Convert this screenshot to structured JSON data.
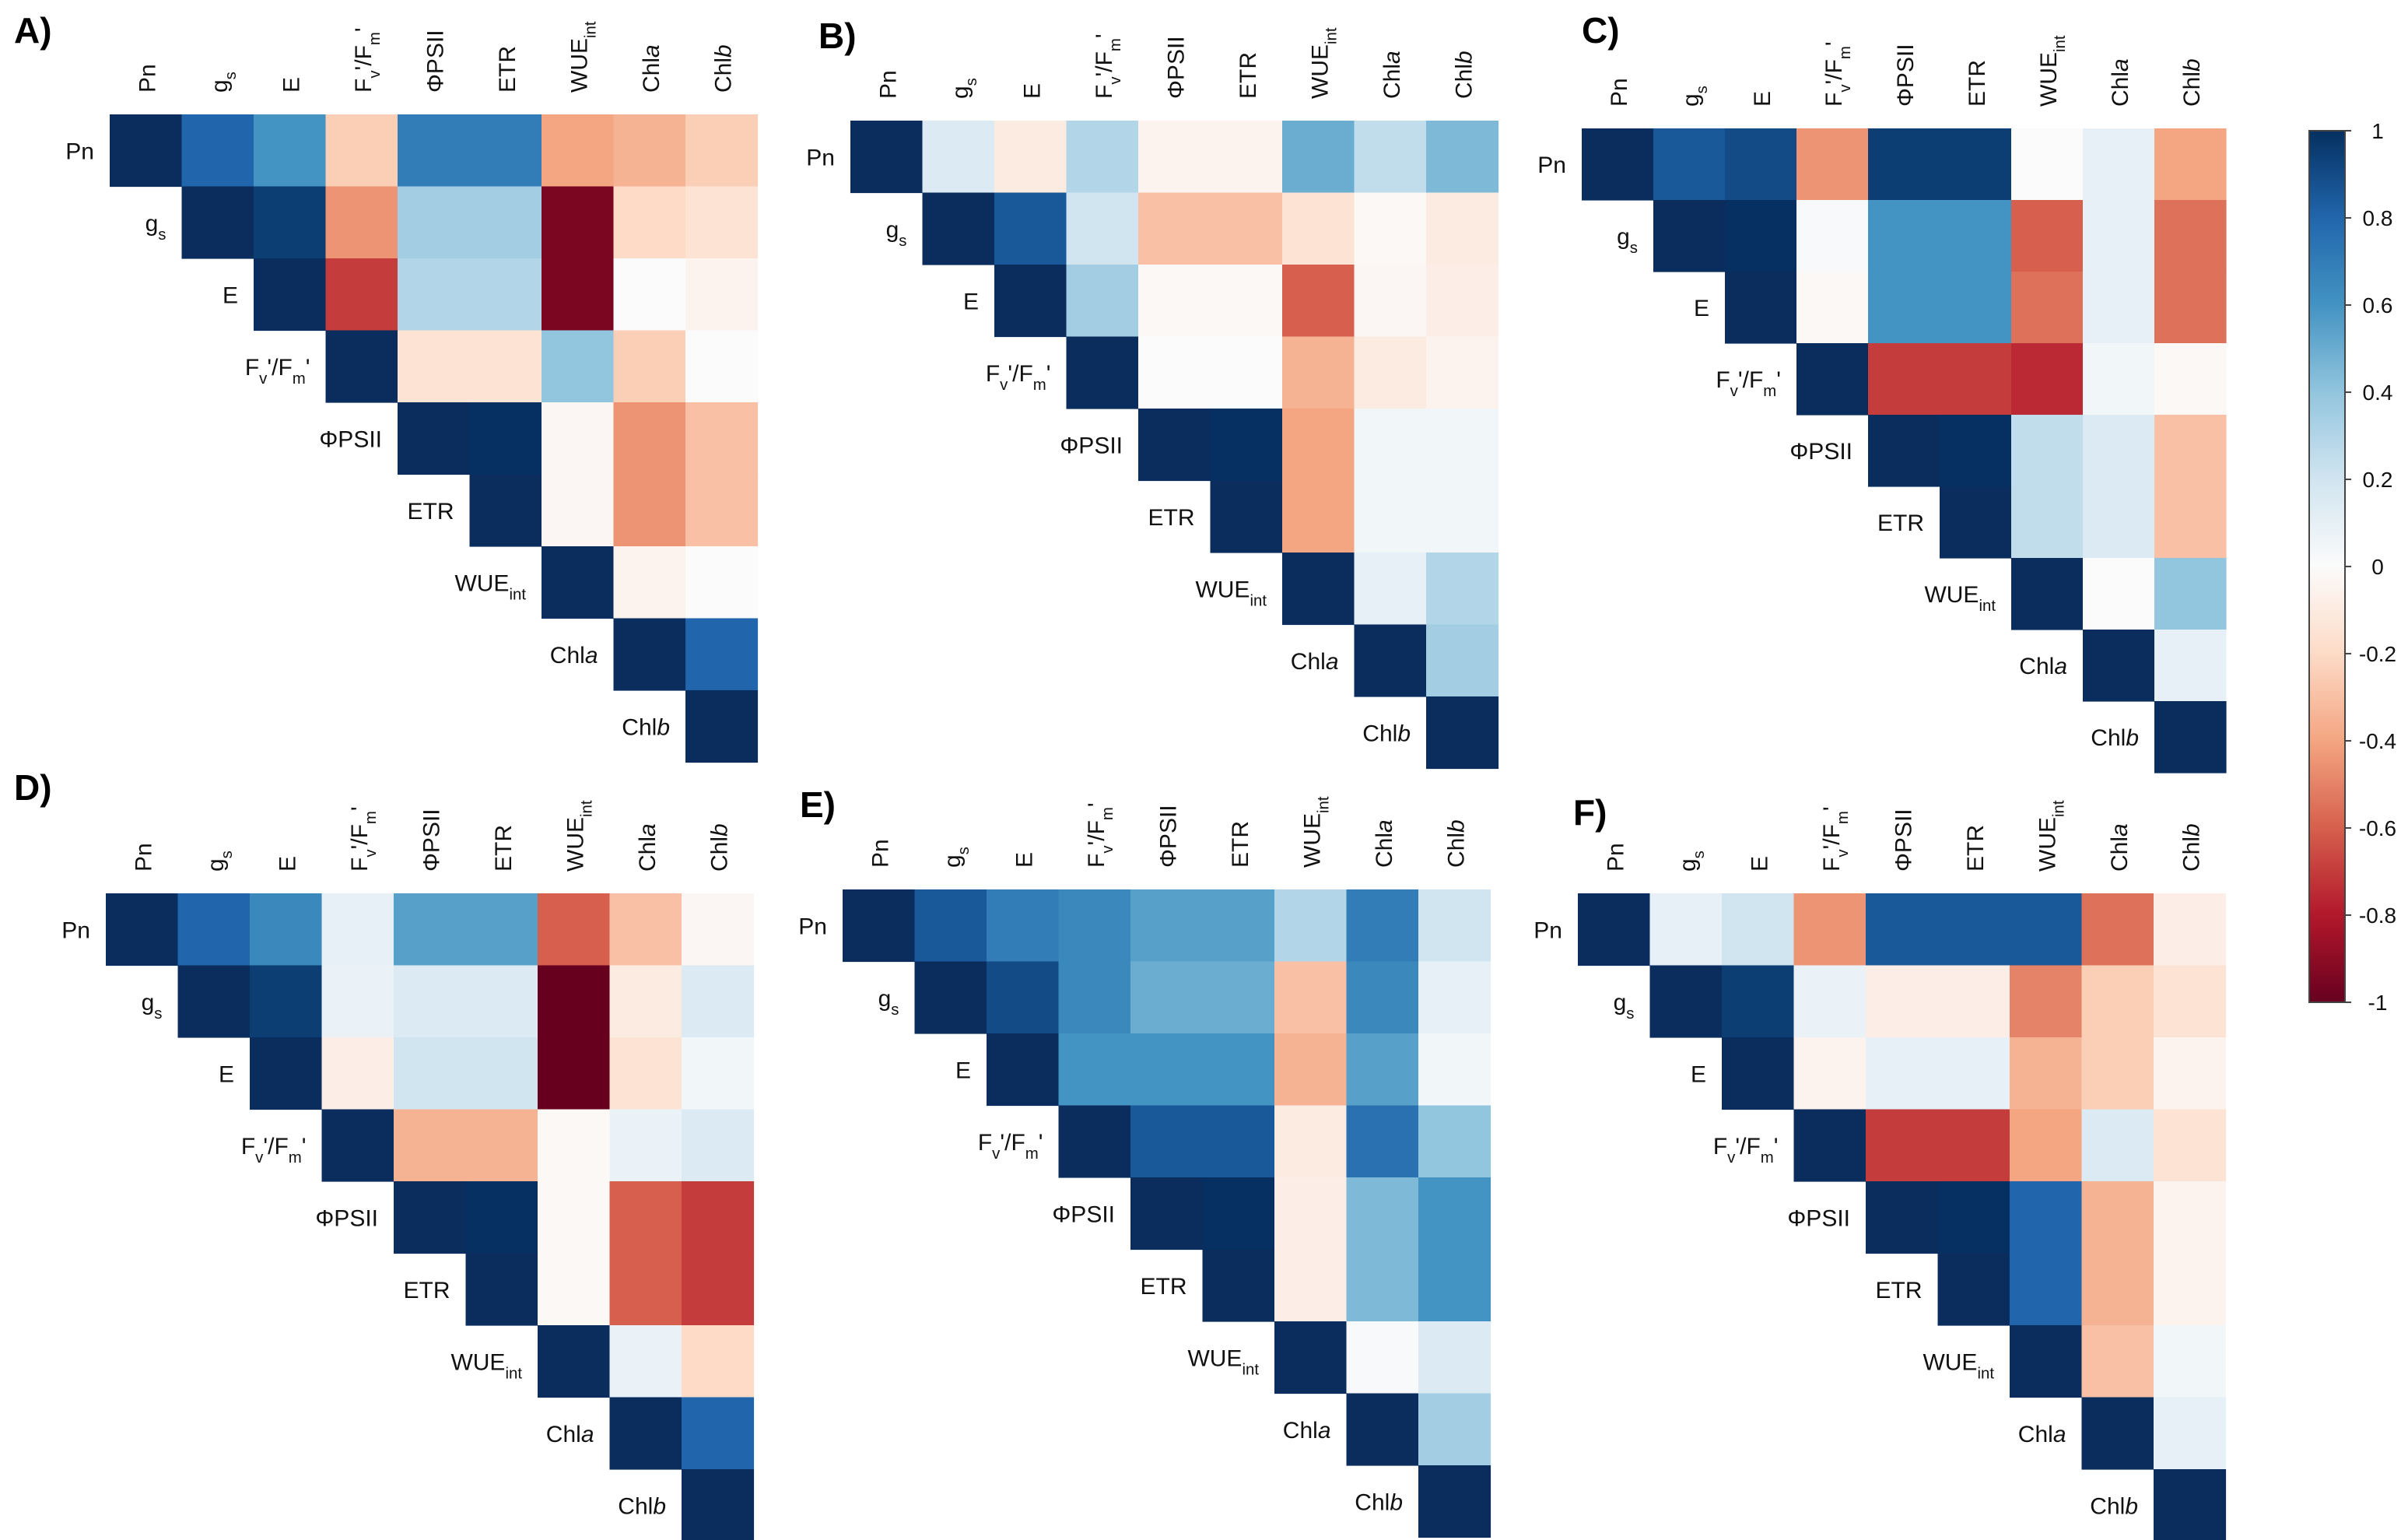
{
  "variables": [
    {
      "base": "Pn",
      "sub": "",
      "italic": ""
    },
    {
      "base": "g",
      "sub": "s",
      "italic": ""
    },
    {
      "base": "E",
      "sub": "",
      "italic": ""
    },
    {
      "base": "Fv'/Fm'",
      "sub": "",
      "italic": ""
    },
    {
      "base": "ΦPSII",
      "sub": "",
      "italic": ""
    },
    {
      "base": "ETR",
      "sub": "",
      "italic": ""
    },
    {
      "base": "WUE",
      "sub": "int",
      "italic": ""
    },
    {
      "base": "Chl",
      "sub": "",
      "italic": "a"
    },
    {
      "base": "Chl",
      "sub": "",
      "italic": "b"
    }
  ],
  "chart_data": [
    {
      "type": "heatmap",
      "panel": "A)",
      "row_labels": [
        "Pn",
        "gs",
        "E",
        "Fv'/Fm'",
        "ΦPSII",
        "ETR",
        "WUEint",
        "Chla",
        "Chlb"
      ],
      "col_labels": [
        "Pn",
        "gs",
        "E",
        "Fv'/Fm'",
        "ΦPSII",
        "ETR",
        "WUEint",
        "Chla",
        "Chlb"
      ],
      "values": [
        [
          1,
          0.8,
          0.6,
          -0.25,
          0.7,
          0.7,
          -0.4,
          -0.35,
          -0.25
        ],
        [
          null,
          1,
          0.95,
          -0.45,
          0.35,
          0.35,
          -0.95,
          -0.2,
          -0.15
        ],
        [
          null,
          null,
          1,
          -0.7,
          0.3,
          0.3,
          -0.95,
          0.0,
          -0.05
        ],
        [
          null,
          null,
          null,
          1,
          -0.15,
          -0.15,
          0.4,
          -0.25,
          0.0
        ],
        [
          null,
          null,
          null,
          null,
          1,
          1,
          -0.03,
          -0.45,
          -0.3
        ],
        [
          null,
          null,
          null,
          null,
          null,
          1,
          -0.03,
          -0.45,
          -0.3
        ],
        [
          null,
          null,
          null,
          null,
          null,
          null,
          1,
          -0.05,
          0.0
        ],
        [
          null,
          null,
          null,
          null,
          null,
          null,
          null,
          1,
          0.8
        ],
        [
          null,
          null,
          null,
          null,
          null,
          null,
          null,
          null,
          1
        ]
      ]
    },
    {
      "type": "heatmap",
      "panel": "B)",
      "row_labels": [
        "Pn",
        "gs",
        "E",
        "Fv'/Fm'",
        "ΦPSII",
        "ETR",
        "WUEint",
        "Chla",
        "Chlb"
      ],
      "col_labels": [
        "Pn",
        "gs",
        "E",
        "Fv'/Fm'",
        "ΦPSII",
        "ETR",
        "WUEint",
        "Chla",
        "Chlb"
      ],
      "values": [
        [
          1,
          0.15,
          -0.1,
          0.3,
          -0.05,
          -0.05,
          0.5,
          0.25,
          0.45
        ],
        [
          null,
          1,
          0.85,
          0.2,
          -0.3,
          -0.3,
          -0.15,
          -0.02,
          -0.1
        ],
        [
          null,
          null,
          1,
          0.35,
          -0.02,
          -0.02,
          -0.6,
          -0.03,
          -0.08
        ],
        [
          null,
          null,
          null,
          1,
          0.0,
          0.0,
          -0.35,
          -0.1,
          -0.05
        ],
        [
          null,
          null,
          null,
          null,
          1,
          1,
          -0.4,
          0.05,
          0.05
        ],
        [
          null,
          null,
          null,
          null,
          null,
          1,
          -0.4,
          0.05,
          0.05
        ],
        [
          null,
          null,
          null,
          null,
          null,
          null,
          1,
          0.1,
          0.3
        ],
        [
          null,
          null,
          null,
          null,
          null,
          null,
          null,
          1,
          0.35
        ],
        [
          null,
          null,
          null,
          null,
          null,
          null,
          null,
          null,
          1
        ]
      ]
    },
    {
      "type": "heatmap",
      "panel": "C)",
      "row_labels": [
        "Pn",
        "gs",
        "E",
        "Fv'/Fm'",
        "ΦPSII",
        "ETR",
        "WUEint",
        "Chla",
        "Chlb"
      ],
      "col_labels": [
        "Pn",
        "gs",
        "E",
        "Fv'/Fm'",
        "ΦPSII",
        "ETR",
        "WUEint",
        "Chla",
        "Chlb"
      ],
      "values": [
        [
          1,
          0.85,
          0.9,
          -0.45,
          0.95,
          0.95,
          0.0,
          0.1,
          -0.4
        ],
        [
          null,
          1,
          1,
          0.02,
          0.6,
          0.6,
          -0.6,
          0.1,
          -0.55
        ],
        [
          null,
          null,
          1,
          -0.02,
          0.6,
          0.6,
          -0.55,
          0.1,
          -0.55
        ],
        [
          null,
          null,
          null,
          1,
          -0.7,
          -0.7,
          -0.75,
          0.05,
          -0.02
        ],
        [
          null,
          null,
          null,
          null,
          1,
          1,
          0.25,
          0.15,
          -0.3
        ],
        [
          null,
          null,
          null,
          null,
          null,
          1,
          0.25,
          0.15,
          -0.3
        ],
        [
          null,
          null,
          null,
          null,
          null,
          null,
          1,
          0.0,
          0.4
        ],
        [
          null,
          null,
          null,
          null,
          null,
          null,
          null,
          1,
          0.1
        ],
        [
          null,
          null,
          null,
          null,
          null,
          null,
          null,
          null,
          1
        ]
      ]
    },
    {
      "type": "heatmap",
      "panel": "D)",
      "row_labels": [
        "Pn",
        "gs",
        "E",
        "Fv'/Fm'",
        "ΦPSII",
        "ETR",
        "WUEint",
        "Chla",
        "Chlb"
      ],
      "col_labels": [
        "Pn",
        "gs",
        "E",
        "Fv'/Fm'",
        "ΦPSII",
        "ETR",
        "WUEint",
        "Chla",
        "Chlb"
      ],
      "values": [
        [
          1,
          0.8,
          0.65,
          0.1,
          0.55,
          0.55,
          -0.6,
          -0.3,
          -0.03
        ],
        [
          null,
          1,
          0.95,
          0.08,
          0.15,
          0.15,
          -1,
          -0.1,
          0.15
        ],
        [
          null,
          null,
          1,
          -0.08,
          0.2,
          0.2,
          -1,
          -0.15,
          0.05
        ],
        [
          null,
          null,
          null,
          1,
          -0.35,
          -0.35,
          -0.02,
          0.08,
          0.15
        ],
        [
          null,
          null,
          null,
          null,
          1,
          1,
          -0.02,
          -0.6,
          -0.7
        ],
        [
          null,
          null,
          null,
          null,
          null,
          1,
          -0.02,
          -0.6,
          -0.7
        ],
        [
          null,
          null,
          null,
          null,
          null,
          null,
          1,
          0.08,
          -0.2
        ],
        [
          null,
          null,
          null,
          null,
          null,
          null,
          null,
          1,
          0.8
        ],
        [
          null,
          null,
          null,
          null,
          null,
          null,
          null,
          null,
          1
        ]
      ]
    },
    {
      "type": "heatmap",
      "panel": "E)",
      "row_labels": [
        "Pn",
        "gs",
        "E",
        "Fv'/Fm'",
        "ΦPSII",
        "ETR",
        "WUEint",
        "Chla",
        "Chlb"
      ],
      "col_labels": [
        "Pn",
        "gs",
        "E",
        "Fv'/Fm'",
        "ΦPSII",
        "ETR",
        "WUEint",
        "Chla",
        "Chlb"
      ],
      "values": [
        [
          1,
          0.85,
          0.7,
          0.65,
          0.55,
          0.55,
          0.3,
          0.7,
          0.2
        ],
        [
          null,
          1,
          0.9,
          0.65,
          0.5,
          0.5,
          -0.3,
          0.65,
          0.1
        ],
        [
          null,
          null,
          1,
          0.6,
          0.6,
          0.6,
          -0.35,
          0.55,
          0.05
        ],
        [
          null,
          null,
          null,
          1,
          0.85,
          0.85,
          -0.1,
          0.75,
          0.4
        ],
        [
          null,
          null,
          null,
          null,
          1,
          1,
          -0.08,
          0.45,
          0.6
        ],
        [
          null,
          null,
          null,
          null,
          null,
          1,
          -0.08,
          0.45,
          0.6
        ],
        [
          null,
          null,
          null,
          null,
          null,
          null,
          1,
          0.02,
          0.15
        ],
        [
          null,
          null,
          null,
          null,
          null,
          null,
          null,
          1,
          0.35
        ],
        [
          null,
          null,
          null,
          null,
          null,
          null,
          null,
          null,
          1
        ]
      ]
    },
    {
      "type": "heatmap",
      "panel": "F)",
      "row_labels": [
        "Pn",
        "gs",
        "E",
        "Fv'/Fm'",
        "ΦPSII",
        "ETR",
        "WUEint",
        "Chla",
        "Chlb"
      ],
      "col_labels": [
        "Pn",
        "gs",
        "E",
        "Fv'/Fm'",
        "ΦPSII",
        "ETR",
        "WUEint",
        "Chla",
        "Chlb"
      ],
      "values": [
        [
          1,
          0.1,
          0.2,
          -0.45,
          0.85,
          0.85,
          0.85,
          -0.55,
          -0.08
        ],
        [
          null,
          1,
          0.95,
          0.08,
          -0.08,
          -0.08,
          -0.5,
          -0.25,
          -0.15
        ],
        [
          null,
          null,
          1,
          -0.05,
          0.1,
          0.1,
          -0.35,
          -0.25,
          -0.05
        ],
        [
          null,
          null,
          null,
          1,
          -0.7,
          -0.7,
          -0.4,
          0.15,
          -0.15
        ],
        [
          null,
          null,
          null,
          null,
          1,
          1,
          0.8,
          -0.35,
          -0.05
        ],
        [
          null,
          null,
          null,
          null,
          null,
          1,
          0.8,
          -0.35,
          -0.05
        ],
        [
          null,
          null,
          null,
          null,
          null,
          null,
          1,
          -0.3,
          0.05
        ],
        [
          null,
          null,
          null,
          null,
          null,
          null,
          null,
          1,
          0.1
        ],
        [
          null,
          null,
          null,
          null,
          null,
          null,
          null,
          null,
          1
        ]
      ]
    }
  ],
  "colorbar": {
    "range": [
      -1,
      1
    ],
    "ticks": [
      "1",
      "0.8",
      "0.6",
      "0.4",
      "0.2",
      "0",
      "-0.2",
      "-0.4",
      "-0.6",
      "-0.8",
      "-1"
    ],
    "tick_values": [
      1,
      0.8,
      0.6,
      0.4,
      0.2,
      0,
      -0.2,
      -0.4,
      -0.6,
      -0.8,
      -1
    ],
    "stops": [
      "#67001f",
      "#b2182b",
      "#d6604d",
      "#f4a582",
      "#fddbc7",
      "#fbfbfb",
      "#d1e5f0",
      "#92c5de",
      "#4393c3",
      "#2166ac",
      "#053061"
    ]
  },
  "diagonal_color": "#0b2d5e"
}
